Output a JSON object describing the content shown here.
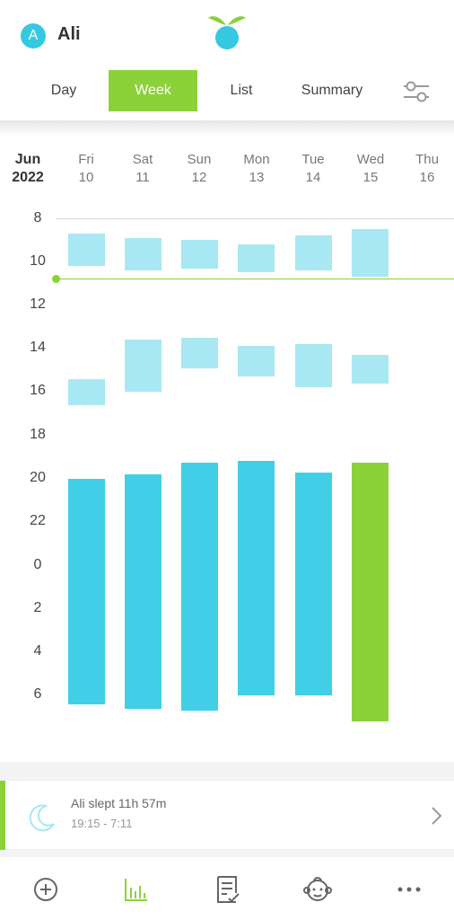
{
  "header": {
    "avatar_letter": "A",
    "user_name": "Ali"
  },
  "tabs": [
    {
      "label": "Day",
      "active": false
    },
    {
      "label": "Week",
      "active": true
    },
    {
      "label": "List",
      "active": false
    },
    {
      "label": "Summary",
      "active": false
    }
  ],
  "calendar": {
    "month": "Jun",
    "year": "2022",
    "days": [
      {
        "name": "Fri",
        "date": "10"
      },
      {
        "name": "Sat",
        "date": "11"
      },
      {
        "name": "Sun",
        "date": "12"
      },
      {
        "name": "Mon",
        "date": "13"
      },
      {
        "name": "Tue",
        "date": "14"
      },
      {
        "name": "Wed",
        "date": "15"
      },
      {
        "name": "Thu",
        "date": "16"
      }
    ],
    "hour_labels": [
      "8",
      "10",
      "12",
      "14",
      "16",
      "18",
      "20",
      "22",
      "0",
      "2",
      "4",
      "6"
    ]
  },
  "chart_data": {
    "type": "bar",
    "y_axis": "hour of day, starting 8:00 and wrapping past midnight",
    "current_time_marker_hour": 10.8,
    "series": [
      {
        "name": "nap-morning",
        "values": [
          {
            "day": "Fri 10",
            "start": 8.7,
            "end": 10.2
          },
          {
            "day": "Sat 11",
            "start": 8.9,
            "end": 10.4
          },
          {
            "day": "Sun 12",
            "start": 9.0,
            "end": 10.3
          },
          {
            "day": "Mon 13",
            "start": 9.2,
            "end": 10.5
          },
          {
            "day": "Tue 14",
            "start": 8.8,
            "end": 10.4
          },
          {
            "day": "Wed 15",
            "start": 8.5,
            "end": 10.7
          }
        ]
      },
      {
        "name": "nap-afternoon",
        "values": [
          {
            "day": "Fri 10",
            "start": 15.4,
            "end": 16.6
          },
          {
            "day": "Sat 11",
            "start": 13.6,
            "end": 16.0
          },
          {
            "day": "Sun 12",
            "start": 13.5,
            "end": 14.9
          },
          {
            "day": "Mon 13",
            "start": 13.9,
            "end": 15.3
          },
          {
            "day": "Tue 14",
            "start": 13.8,
            "end": 15.8
          },
          {
            "day": "Wed 15",
            "start": 14.3,
            "end": 15.6
          }
        ]
      },
      {
        "name": "night",
        "values": [
          {
            "day": "Fri 10",
            "start": 20.0,
            "end": 30.4
          },
          {
            "day": "Sat 11",
            "start": 19.8,
            "end": 30.6
          },
          {
            "day": "Sun 12",
            "start": 19.25,
            "end": 30.7
          },
          {
            "day": "Mon 13",
            "start": 19.2,
            "end": 30.0
          },
          {
            "day": "Tue 14",
            "start": 19.7,
            "end": 30.0
          },
          {
            "day": "Wed 15",
            "start": 19.25,
            "end": 31.18,
            "highlighted": true
          }
        ]
      }
    ]
  },
  "sleep_summary": {
    "title": "Ali slept 11h 57m",
    "time_range": "19:15 - 7:11"
  },
  "colors": {
    "accent_green": "#8dd13a",
    "night_blue": "#40cfe6",
    "nap_blue": "#a8e8f2",
    "avatar_blue": "#34c9e0"
  },
  "bottom_nav": [
    {
      "icon": "add-circle-icon"
    },
    {
      "icon": "chart-icon",
      "active": true
    },
    {
      "icon": "notes-icon"
    },
    {
      "icon": "baby-face-icon"
    },
    {
      "icon": "more-icon"
    }
  ]
}
